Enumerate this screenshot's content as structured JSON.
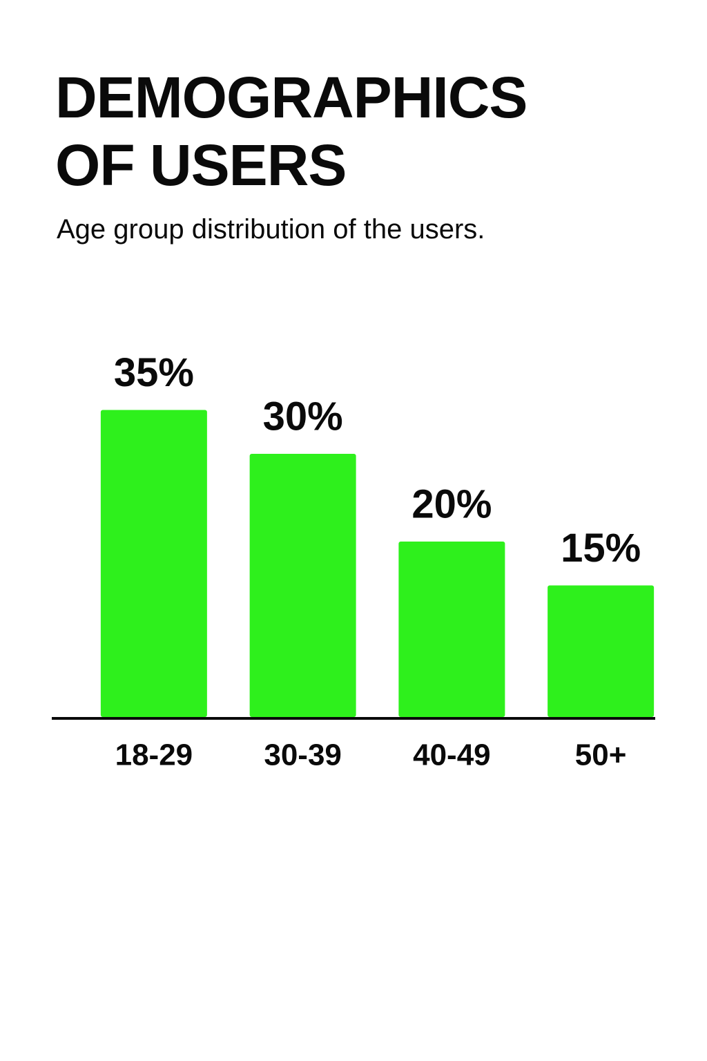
{
  "chart_data": {
    "type": "bar",
    "title": "DEMOGRAPHICS OF USERS",
    "subtitle": "Age group distribution of the users.",
    "categories": [
      "18-29",
      "30-39",
      "40-49",
      "50+"
    ],
    "values": [
      35,
      30,
      20,
      15
    ],
    "value_labels": [
      "35%",
      "30%",
      "20%",
      "15%"
    ],
    "color": "#2ef01c"
  }
}
